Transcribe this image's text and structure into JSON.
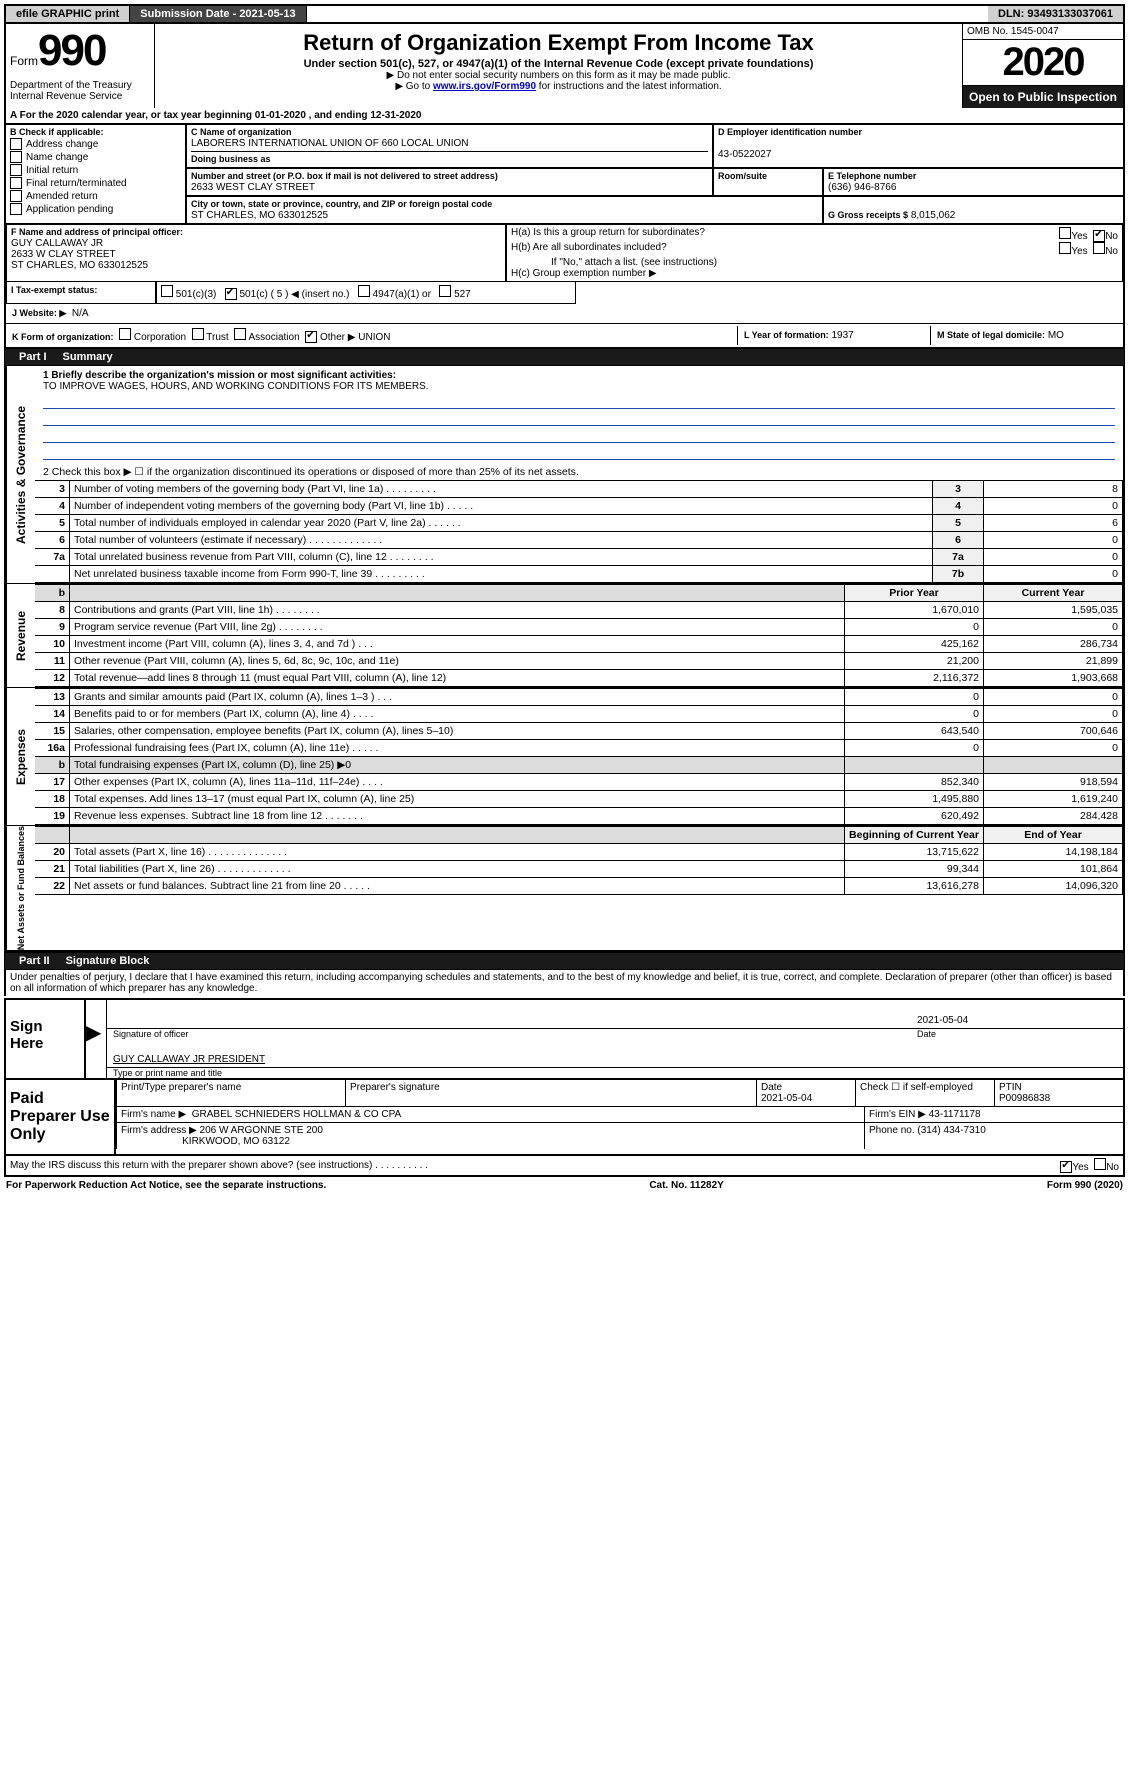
{
  "topbar": {
    "efile": "efile GRAPHIC print",
    "subdate_label": "Submission Date - 2021-05-13",
    "dln": "DLN: 93493133037061"
  },
  "header": {
    "form_prefix": "Form",
    "form_num": "990",
    "title": "Return of Organization Exempt From Income Tax",
    "subtitle": "Under section 501(c), 527, or 4947(a)(1) of the Internal Revenue Code (except private foundations)",
    "note1": "▶ Do not enter social security numbers on this form as it may be made public.",
    "note2_pre": "▶ Go to ",
    "note2_link": "www.irs.gov/Form990",
    "note2_post": " for instructions and the latest information.",
    "dept": "Department of the Treasury\nInternal Revenue Service",
    "omb": "OMB No. 1545-0047",
    "year": "2020",
    "open": "Open to Public Inspection"
  },
  "A_line": "A For the 2020 calendar year, or tax year beginning 01-01-2020    , and ending 12-31-2020",
  "B": {
    "label": "B Check if applicable:",
    "items": [
      "Address change",
      "Name change",
      "Initial return",
      "Final return/terminated",
      "Amended return",
      "Application pending"
    ]
  },
  "C": {
    "name_label": "C Name of organization",
    "name": "LABORERS INTERNATIONAL UNION OF 660 LOCAL UNION",
    "dba_label": "Doing business as",
    "addr_label": "Number and street (or P.O. box if mail is not delivered to street address)",
    "room_label": "Room/suite",
    "address": "2633 WEST CLAY STREET",
    "city_label": "City or town, state or province, country, and ZIP or foreign postal code",
    "city": "ST CHARLES, MO  633012525"
  },
  "D": {
    "label": "D Employer identification number",
    "ein": "43-0522027"
  },
  "E": {
    "label": "E Telephone number",
    "phone": "(636) 946-8766"
  },
  "G": {
    "label": "G Gross receipts $",
    "val": "8,015,062"
  },
  "F": {
    "label": "F  Name and address of principal officer:",
    "name": "GUY CALLAWAY JR",
    "addr1": "2633 W CLAY STREET",
    "addr2": "ST CHARLES, MO  633012525"
  },
  "H": {
    "a": "H(a)  Is this a group return for subordinates?",
    "b": "H(b)  Are all subordinates included?",
    "b_note": "If \"No,\" attach a list. (see instructions)",
    "c": "H(c)  Group exemption number ▶",
    "yes": "Yes",
    "no": "No"
  },
  "I": {
    "label": "I Tax-exempt status:",
    "c3": "501(c)(3)",
    "c": "501(c)",
    "c_num": "( 5 ) ◀ (insert no.)",
    "a1": "4947(a)(1) or",
    "s527": "527"
  },
  "J": {
    "label": "J Website: ▶",
    "val": "N/A"
  },
  "K": {
    "label": "K Form of organization:",
    "opts": [
      "Corporation",
      "Trust",
      "Association",
      "Other ▶"
    ],
    "other_val": "UNION"
  },
  "L": {
    "label": "L Year of formation:",
    "val": "1937"
  },
  "M": {
    "label": "M State of legal domicile:",
    "val": "MO"
  },
  "part1": {
    "tab": "Part I",
    "title": "Summary"
  },
  "mission": {
    "q": "1  Briefly describe the organization's mission or most significant activities:",
    "text": "TO IMPROVE WAGES, HOURS, AND WORKING CONDITIONS FOR ITS MEMBERS."
  },
  "line2": "2   Check this box ▶ ☐  if the organization discontinued its operations or disposed of more than 25% of its net assets.",
  "gov_rows": [
    {
      "n": "3",
      "desc": "Number of voting members of the governing body (Part VI, line 1a)   .    .    .    .    .    .    .    .    .",
      "rn": "3",
      "val": "8"
    },
    {
      "n": "4",
      "desc": "Number of independent voting members of the governing body (Part VI, line 1b)   .    .    .    .    .",
      "rn": "4",
      "val": "0"
    },
    {
      "n": "5",
      "desc": "Total number of individuals employed in calendar year 2020 (Part V, line 2a)   .    .    .    .    .    .",
      "rn": "5",
      "val": "6"
    },
    {
      "n": "6",
      "desc": "Total number of volunteers (estimate if necessary)   .    .    .    .    .    .    .    .    .    .    .    .    .",
      "rn": "6",
      "val": "0"
    },
    {
      "n": "7a",
      "desc": "Total unrelated business revenue from Part VIII, column (C), line 12   .    .    .    .    .    .    .    .",
      "rn": "7a",
      "val": "0"
    },
    {
      "n": "",
      "desc": "Net unrelated business taxable income from Form 990-T, line 39   .    .    .    .    .    .    .    .    .",
      "rn": "7b",
      "val": "0"
    }
  ],
  "rev_header": {
    "prior": "Prior Year",
    "curr": "Current Year"
  },
  "rev_rows": [
    {
      "n": "8",
      "desc": "Contributions and grants (Part VIII, line 1h)   .    .    .    .    .    .    .    .",
      "p": "1,670,010",
      "c": "1,595,035"
    },
    {
      "n": "9",
      "desc": "Program service revenue (Part VIII, line 2g)   .    .    .    .    .    .    .    .",
      "p": "0",
      "c": "0"
    },
    {
      "n": "10",
      "desc": "Investment income (Part VIII, column (A), lines 3, 4, and 7d )   .    .    .",
      "p": "425,162",
      "c": "286,734"
    },
    {
      "n": "11",
      "desc": "Other revenue (Part VIII, column (A), lines 5, 6d, 8c, 9c, 10c, and 11e)",
      "p": "21,200",
      "c": "21,899"
    },
    {
      "n": "12",
      "desc": "Total revenue—add lines 8 through 11 (must equal Part VIII, column (A), line 12)",
      "p": "2,116,372",
      "c": "1,903,668"
    }
  ],
  "exp_rows": [
    {
      "n": "13",
      "desc": "Grants and similar amounts paid (Part IX, column (A), lines 1–3 )   .    .    .",
      "p": "0",
      "c": "0"
    },
    {
      "n": "14",
      "desc": "Benefits paid to or for members (Part IX, column (A), line 4)   .    .    .    .",
      "p": "0",
      "c": "0"
    },
    {
      "n": "15",
      "desc": "Salaries, other compensation, employee benefits (Part IX, column (A), lines 5–10)",
      "p": "643,540",
      "c": "700,646"
    },
    {
      "n": "16a",
      "desc": "Professional fundraising fees (Part IX, column (A), line 11e)   .    .    .    .    .",
      "p": "0",
      "c": "0"
    },
    {
      "n": "b",
      "desc": "Total fundraising expenses (Part IX, column (D), line 25) ▶0",
      "p": "",
      "c": "",
      "grey": true
    },
    {
      "n": "17",
      "desc": "Other expenses (Part IX, column (A), lines 11a–11d, 11f–24e)   .    .    .    .",
      "p": "852,340",
      "c": "918,594"
    },
    {
      "n": "18",
      "desc": "Total expenses. Add lines 13–17 (must equal Part IX, column (A), line 25)",
      "p": "1,495,880",
      "c": "1,619,240"
    },
    {
      "n": "19",
      "desc": "Revenue less expenses. Subtract line 18 from line 12   .    .    .    .    .    .    .",
      "p": "620,492",
      "c": "284,428"
    }
  ],
  "na_header": {
    "beg": "Beginning of Current Year",
    "end": "End of Year"
  },
  "na_rows": [
    {
      "n": "20",
      "desc": "Total assets (Part X, line 16)   .    .    .    .    .    .    .    .    .    .    .    .    .    .",
      "p": "13,715,622",
      "c": "14,198,184"
    },
    {
      "n": "21",
      "desc": "Total liabilities (Part X, line 26)   .    .    .    .    .    .    .    .    .    .    .    .    .",
      "p": "99,344",
      "c": "101,864"
    },
    {
      "n": "22",
      "desc": "Net assets or fund balances. Subtract line 21 from line 20   .    .    .    .    .",
      "p": "13,616,278",
      "c": "14,096,320"
    }
  ],
  "part2": {
    "tab": "Part II",
    "title": "Signature Block"
  },
  "perjury": "Under penalties of perjury, I declare that I have examined this return, including accompanying schedules and statements, and to the best of my knowledge and belief, it is true, correct, and complete. Declaration of preparer (other than officer) is based on all information of which preparer has any knowledge.",
  "sign": {
    "here": "Sign Here",
    "sig_lab": "Signature of officer",
    "date_lab": "Date",
    "date": "2021-05-04",
    "name": "GUY CALLAWAY JR  PRESIDENT",
    "name_lab": "Type or print name and title"
  },
  "paid": {
    "label": "Paid Preparer Use Only",
    "h1": "Print/Type preparer's name",
    "h2": "Preparer's signature",
    "h3_date": "Date",
    "h3_date_val": "2021-05-04",
    "check": "Check ☐ if self-employed",
    "ptin_lab": "PTIN",
    "ptin": "P00986838",
    "firm_lab": "Firm's name     ▶",
    "firm": "GRABEL SCHNIEDERS HOLLMAN & CO CPA",
    "firm_ein_lab": "Firm's EIN ▶",
    "firm_ein": "43-1171178",
    "addr_lab": "Firm's address ▶",
    "addr1": "206 W ARGONNE STE 200",
    "addr2": "KIRKWOOD, MO  63122",
    "phone_lab": "Phone no.",
    "phone": "(314) 434-7310"
  },
  "discuss": {
    "q": "May the IRS discuss this return with the preparer shown above? (see instructions)   .    .    .    .    .    .    .    .    .    .",
    "yes": "Yes",
    "no": "No"
  },
  "paperwork": {
    "left": "For Paperwork Reduction Act Notice, see the separate instructions.",
    "mid": "Cat. No. 11282Y",
    "right": "Form 990 (2020)"
  },
  "vlabels": {
    "gov": "Activities & Governance",
    "rev": "Revenue",
    "exp": "Expenses",
    "na": "Net Assets or Fund Balances"
  }
}
